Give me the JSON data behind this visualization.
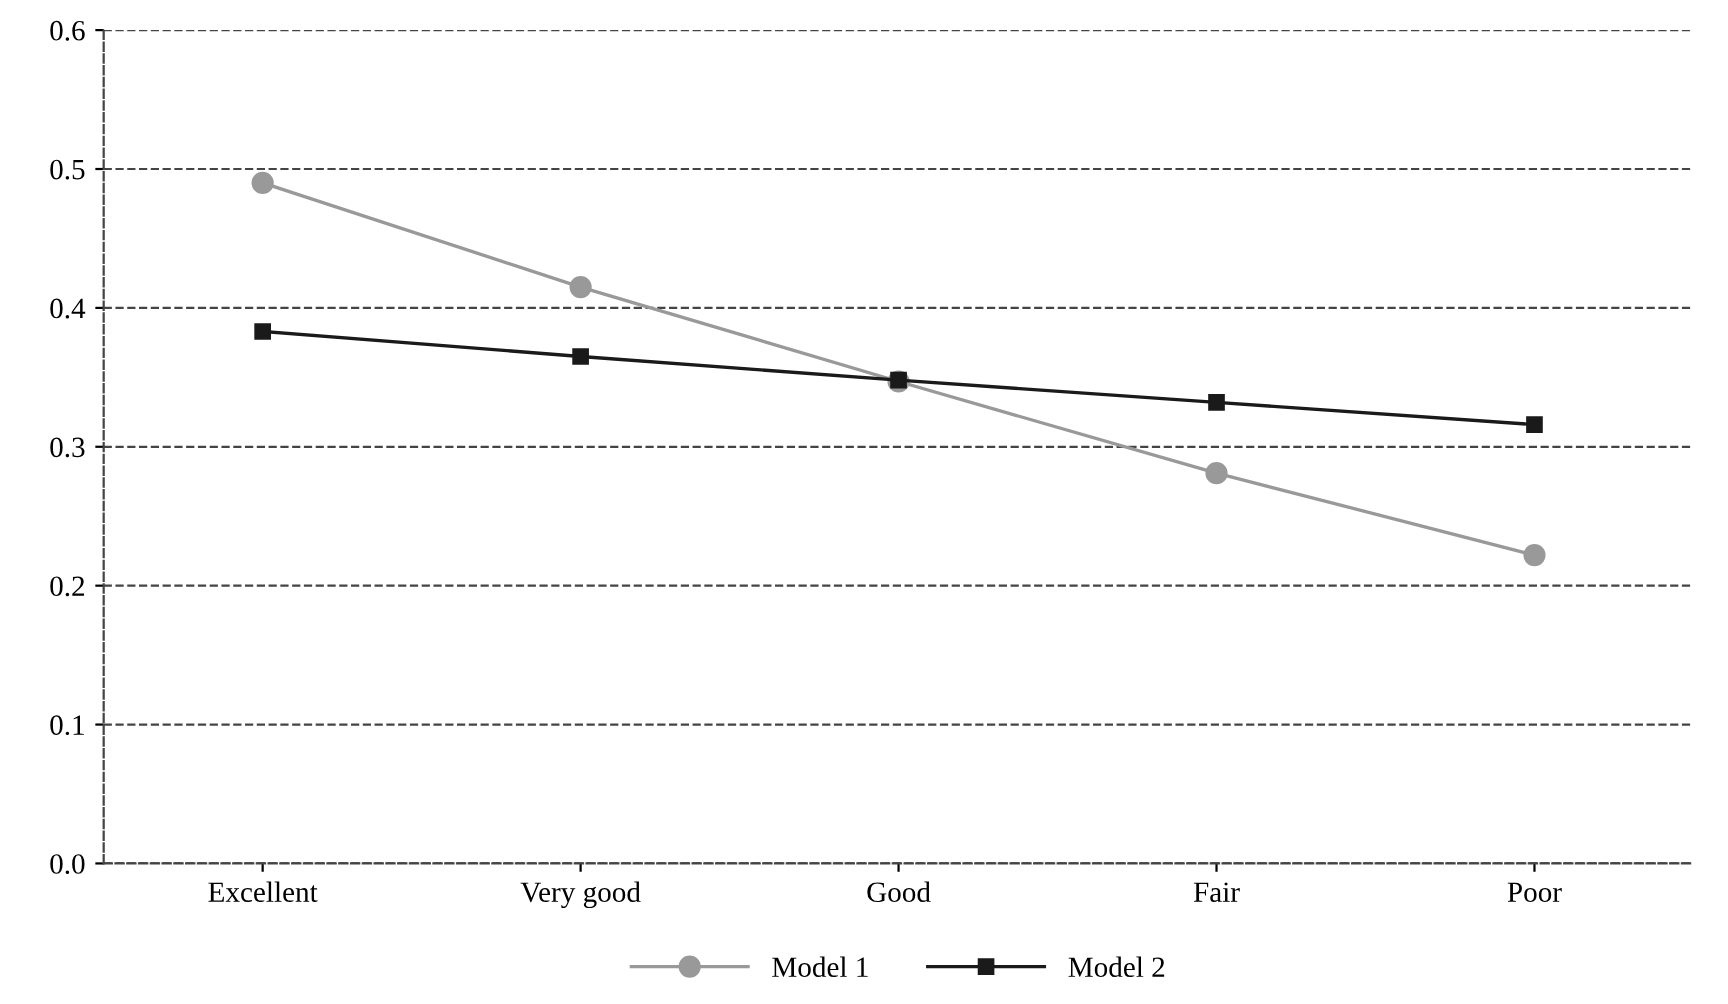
{
  "chart_data": {
    "type": "line",
    "categories": [
      "Excellent",
      "Very good",
      "Good",
      "Fair",
      "Poor"
    ],
    "series": [
      {
        "name": "Model 1",
        "color": "#999999",
        "marker": "circle",
        "values": [
          0.49,
          0.415,
          0.347,
          0.281,
          0.222
        ]
      },
      {
        "name": "Model 2",
        "color": "#1a1a1a",
        "marker": "square",
        "values": [
          0.383,
          0.365,
          0.348,
          0.332,
          0.316
        ]
      }
    ],
    "ylim": [
      0,
      0.6
    ],
    "yticks": [
      {
        "value": 0,
        "label": "0.0"
      },
      0.1,
      0.2,
      0.3,
      0.4,
      0.5,
      0.6
    ],
    "grid": "y",
    "legend": "bottom",
    "line_style": "solid"
  }
}
